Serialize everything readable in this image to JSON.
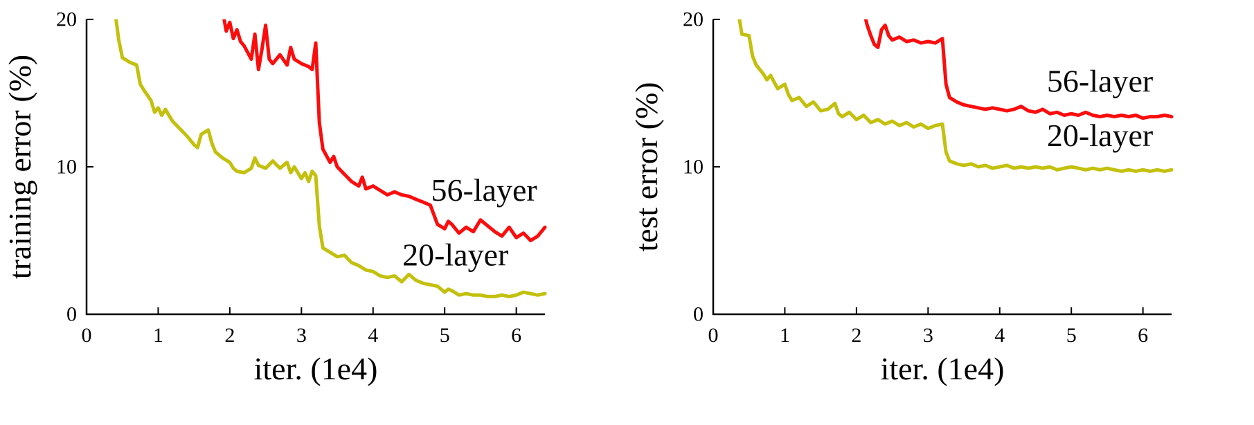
{
  "page": {
    "background": "#ffffff"
  },
  "chart_data": [
    {
      "type": "line",
      "title": "",
      "xlabel": "iter. (1e4)",
      "ylabel": "training error (%)",
      "xlim": [
        0,
        6.4
      ],
      "ylim": [
        0,
        20
      ],
      "xticks": [
        0,
        1,
        2,
        3,
        4,
        5,
        6
      ],
      "yticks": [
        0,
        10,
        20
      ],
      "grid": false,
      "legend": "inline-annotations",
      "series": [
        {
          "name": "56-layer",
          "color": "#fb0d0d",
          "label_x": 5.55,
          "label_y": 7.7,
          "points": [
            [
              1.9,
              20.6
            ],
            [
              1.95,
              19.2
            ],
            [
              2.0,
              19.8
            ],
            [
              2.05,
              18.7
            ],
            [
              2.1,
              19.3
            ],
            [
              2.15,
              18.5
            ],
            [
              2.2,
              18.2
            ],
            [
              2.3,
              17.3
            ],
            [
              2.35,
              19.0
            ],
            [
              2.4,
              16.6
            ],
            [
              2.45,
              18.0
            ],
            [
              2.5,
              19.6
            ],
            [
              2.55,
              17.3
            ],
            [
              2.6,
              17.0
            ],
            [
              2.7,
              17.6
            ],
            [
              2.8,
              16.9
            ],
            [
              2.85,
              18.1
            ],
            [
              2.9,
              17.3
            ],
            [
              3.0,
              17.0
            ],
            [
              3.1,
              16.8
            ],
            [
              3.15,
              16.6
            ],
            [
              3.2,
              18.4
            ],
            [
              3.25,
              13.0
            ],
            [
              3.3,
              11.2
            ],
            [
              3.4,
              10.3
            ],
            [
              3.45,
              10.7
            ],
            [
              3.5,
              10.0
            ],
            [
              3.6,
              9.5
            ],
            [
              3.7,
              9.0
            ],
            [
              3.8,
              8.7
            ],
            [
              3.85,
              9.3
            ],
            [
              3.9,
              8.5
            ],
            [
              4.0,
              8.7
            ],
            [
              4.1,
              8.4
            ],
            [
              4.2,
              8.1
            ],
            [
              4.3,
              8.3
            ],
            [
              4.4,
              8.1
            ],
            [
              4.5,
              8.0
            ],
            [
              4.6,
              7.8
            ],
            [
              4.7,
              7.6
            ],
            [
              4.8,
              7.4
            ],
            [
              4.9,
              6.1
            ],
            [
              5.0,
              5.8
            ],
            [
              5.05,
              6.3
            ],
            [
              5.1,
              6.1
            ],
            [
              5.2,
              5.5
            ],
            [
              5.3,
              5.9
            ],
            [
              5.4,
              5.6
            ],
            [
              5.5,
              6.4
            ],
            [
              5.6,
              6.0
            ],
            [
              5.7,
              5.6
            ],
            [
              5.8,
              5.3
            ],
            [
              5.9,
              5.9
            ],
            [
              6.0,
              5.2
            ],
            [
              6.1,
              5.5
            ],
            [
              6.2,
              5.0
            ],
            [
              6.3,
              5.3
            ],
            [
              6.4,
              5.9
            ]
          ]
        },
        {
          "name": "20-layer",
          "color": "#c3c00e",
          "label_x": 5.15,
          "label_y": 3.3,
          "points": [
            [
              0.4,
              20.4
            ],
            [
              0.45,
              18.6
            ],
            [
              0.5,
              17.4
            ],
            [
              0.6,
              17.1
            ],
            [
              0.7,
              16.9
            ],
            [
              0.75,
              15.6
            ],
            [
              0.8,
              15.2
            ],
            [
              0.9,
              14.5
            ],
            [
              0.95,
              13.7
            ],
            [
              1.0,
              14.0
            ],
            [
              1.05,
              13.5
            ],
            [
              1.1,
              13.9
            ],
            [
              1.2,
              13.1
            ],
            [
              1.3,
              12.6
            ],
            [
              1.4,
              12.1
            ],
            [
              1.5,
              11.5
            ],
            [
              1.55,
              11.3
            ],
            [
              1.6,
              12.2
            ],
            [
              1.7,
              12.5
            ],
            [
              1.75,
              11.6
            ],
            [
              1.8,
              11.0
            ],
            [
              1.9,
              10.6
            ],
            [
              2.0,
              10.3
            ],
            [
              2.05,
              9.9
            ],
            [
              2.1,
              9.7
            ],
            [
              2.2,
              9.6
            ],
            [
              2.3,
              9.9
            ],
            [
              2.35,
              10.6
            ],
            [
              2.4,
              10.1
            ],
            [
              2.5,
              9.9
            ],
            [
              2.6,
              10.4
            ],
            [
              2.7,
              9.9
            ],
            [
              2.8,
              10.3
            ],
            [
              2.85,
              9.6
            ],
            [
              2.9,
              10.0
            ],
            [
              3.0,
              9.2
            ],
            [
              3.05,
              9.6
            ],
            [
              3.1,
              9.0
            ],
            [
              3.15,
              9.7
            ],
            [
              3.2,
              9.4
            ],
            [
              3.25,
              6.0
            ],
            [
              3.3,
              4.5
            ],
            [
              3.4,
              4.2
            ],
            [
              3.5,
              3.9
            ],
            [
              3.6,
              4.0
            ],
            [
              3.7,
              3.5
            ],
            [
              3.8,
              3.3
            ],
            [
              3.9,
              3.0
            ],
            [
              4.0,
              2.9
            ],
            [
              4.1,
              2.6
            ],
            [
              4.2,
              2.5
            ],
            [
              4.3,
              2.6
            ],
            [
              4.4,
              2.2
            ],
            [
              4.5,
              2.7
            ],
            [
              4.6,
              2.3
            ],
            [
              4.7,
              2.1
            ],
            [
              4.8,
              2.0
            ],
            [
              4.9,
              1.9
            ],
            [
              5.0,
              1.5
            ],
            [
              5.05,
              1.7
            ],
            [
              5.1,
              1.6
            ],
            [
              5.2,
              1.3
            ],
            [
              5.3,
              1.4
            ],
            [
              5.4,
              1.3
            ],
            [
              5.5,
              1.3
            ],
            [
              5.6,
              1.2
            ],
            [
              5.7,
              1.2
            ],
            [
              5.8,
              1.3
            ],
            [
              5.9,
              1.2
            ],
            [
              6.0,
              1.3
            ],
            [
              6.1,
              1.5
            ],
            [
              6.2,
              1.4
            ],
            [
              6.3,
              1.3
            ],
            [
              6.4,
              1.4
            ]
          ]
        }
      ]
    },
    {
      "type": "line",
      "title": "",
      "xlabel": "iter. (1e4)",
      "ylabel": "test error (%)",
      "xlim": [
        0,
        6.4
      ],
      "ylim": [
        0,
        20
      ],
      "xticks": [
        0,
        1,
        2,
        3,
        4,
        5,
        6
      ],
      "yticks": [
        0,
        10,
        20
      ],
      "grid": false,
      "legend": "inline-annotations",
      "series": [
        {
          "name": "56-layer",
          "color": "#fb0d0d",
          "label_x": 5.4,
          "label_y": 15.1,
          "points": [
            [
              2.1,
              20.6
            ],
            [
              2.15,
              19.6
            ],
            [
              2.2,
              18.9
            ],
            [
              2.25,
              18.3
            ],
            [
              2.3,
              18.1
            ],
            [
              2.35,
              19.3
            ],
            [
              2.4,
              19.6
            ],
            [
              2.45,
              18.9
            ],
            [
              2.5,
              18.6
            ],
            [
              2.6,
              18.8
            ],
            [
              2.7,
              18.5
            ],
            [
              2.8,
              18.6
            ],
            [
              2.9,
              18.4
            ],
            [
              3.0,
              18.5
            ],
            [
              3.1,
              18.4
            ],
            [
              3.2,
              18.7
            ],
            [
              3.25,
              15.6
            ],
            [
              3.3,
              14.7
            ],
            [
              3.4,
              14.4
            ],
            [
              3.5,
              14.2
            ],
            [
              3.6,
              14.1
            ],
            [
              3.7,
              14.0
            ],
            [
              3.8,
              13.9
            ],
            [
              3.9,
              14.0
            ],
            [
              4.0,
              13.9
            ],
            [
              4.1,
              13.8
            ],
            [
              4.2,
              13.9
            ],
            [
              4.3,
              14.1
            ],
            [
              4.4,
              13.8
            ],
            [
              4.5,
              13.7
            ],
            [
              4.6,
              13.9
            ],
            [
              4.7,
              13.6
            ],
            [
              4.8,
              13.7
            ],
            [
              4.9,
              13.5
            ],
            [
              5.0,
              13.6
            ],
            [
              5.1,
              13.5
            ],
            [
              5.2,
              13.7
            ],
            [
              5.3,
              13.5
            ],
            [
              5.4,
              13.4
            ],
            [
              5.5,
              13.5
            ],
            [
              5.6,
              13.4
            ],
            [
              5.7,
              13.5
            ],
            [
              5.8,
              13.4
            ],
            [
              5.9,
              13.5
            ],
            [
              6.0,
              13.3
            ],
            [
              6.1,
              13.4
            ],
            [
              6.2,
              13.4
            ],
            [
              6.3,
              13.5
            ],
            [
              6.4,
              13.4
            ]
          ]
        },
        {
          "name": "20-layer",
          "color": "#c3c00e",
          "label_x": 5.4,
          "label_y": 11.4,
          "points": [
            [
              0.35,
              20.5
            ],
            [
              0.4,
              19.0
            ],
            [
              0.5,
              18.9
            ],
            [
              0.55,
              17.5
            ],
            [
              0.6,
              16.9
            ],
            [
              0.7,
              16.3
            ],
            [
              0.75,
              15.9
            ],
            [
              0.8,
              16.2
            ],
            [
              0.9,
              15.3
            ],
            [
              1.0,
              15.6
            ],
            [
              1.05,
              14.9
            ],
            [
              1.1,
              14.5
            ],
            [
              1.2,
              14.7
            ],
            [
              1.3,
              14.1
            ],
            [
              1.4,
              14.4
            ],
            [
              1.5,
              13.8
            ],
            [
              1.6,
              13.9
            ],
            [
              1.7,
              14.3
            ],
            [
              1.75,
              13.6
            ],
            [
              1.8,
              13.4
            ],
            [
              1.9,
              13.7
            ],
            [
              2.0,
              13.2
            ],
            [
              2.1,
              13.5
            ],
            [
              2.2,
              13.0
            ],
            [
              2.3,
              13.2
            ],
            [
              2.4,
              12.9
            ],
            [
              2.5,
              13.1
            ],
            [
              2.6,
              12.8
            ],
            [
              2.7,
              13.0
            ],
            [
              2.8,
              12.7
            ],
            [
              2.9,
              12.9
            ],
            [
              3.0,
              12.6
            ],
            [
              3.1,
              12.8
            ],
            [
              3.2,
              12.9
            ],
            [
              3.25,
              11.0
            ],
            [
              3.3,
              10.4
            ],
            [
              3.4,
              10.2
            ],
            [
              3.5,
              10.1
            ],
            [
              3.6,
              10.2
            ],
            [
              3.7,
              10.0
            ],
            [
              3.8,
              10.1
            ],
            [
              3.9,
              9.9
            ],
            [
              4.0,
              10.0
            ],
            [
              4.1,
              10.1
            ],
            [
              4.2,
              9.9
            ],
            [
              4.3,
              10.0
            ],
            [
              4.4,
              9.9
            ],
            [
              4.5,
              10.0
            ],
            [
              4.6,
              9.9
            ],
            [
              4.7,
              10.0
            ],
            [
              4.8,
              9.8
            ],
            [
              4.9,
              9.9
            ],
            [
              5.0,
              10.0
            ],
            [
              5.1,
              9.9
            ],
            [
              5.2,
              9.8
            ],
            [
              5.3,
              9.9
            ],
            [
              5.4,
              9.8
            ],
            [
              5.5,
              9.9
            ],
            [
              5.6,
              9.8
            ],
            [
              5.7,
              9.7
            ],
            [
              5.8,
              9.8
            ],
            [
              5.9,
              9.7
            ],
            [
              6.0,
              9.8
            ],
            [
              6.1,
              9.7
            ],
            [
              6.2,
              9.8
            ],
            [
              6.3,
              9.7
            ],
            [
              6.4,
              9.8
            ]
          ]
        }
      ]
    }
  ]
}
